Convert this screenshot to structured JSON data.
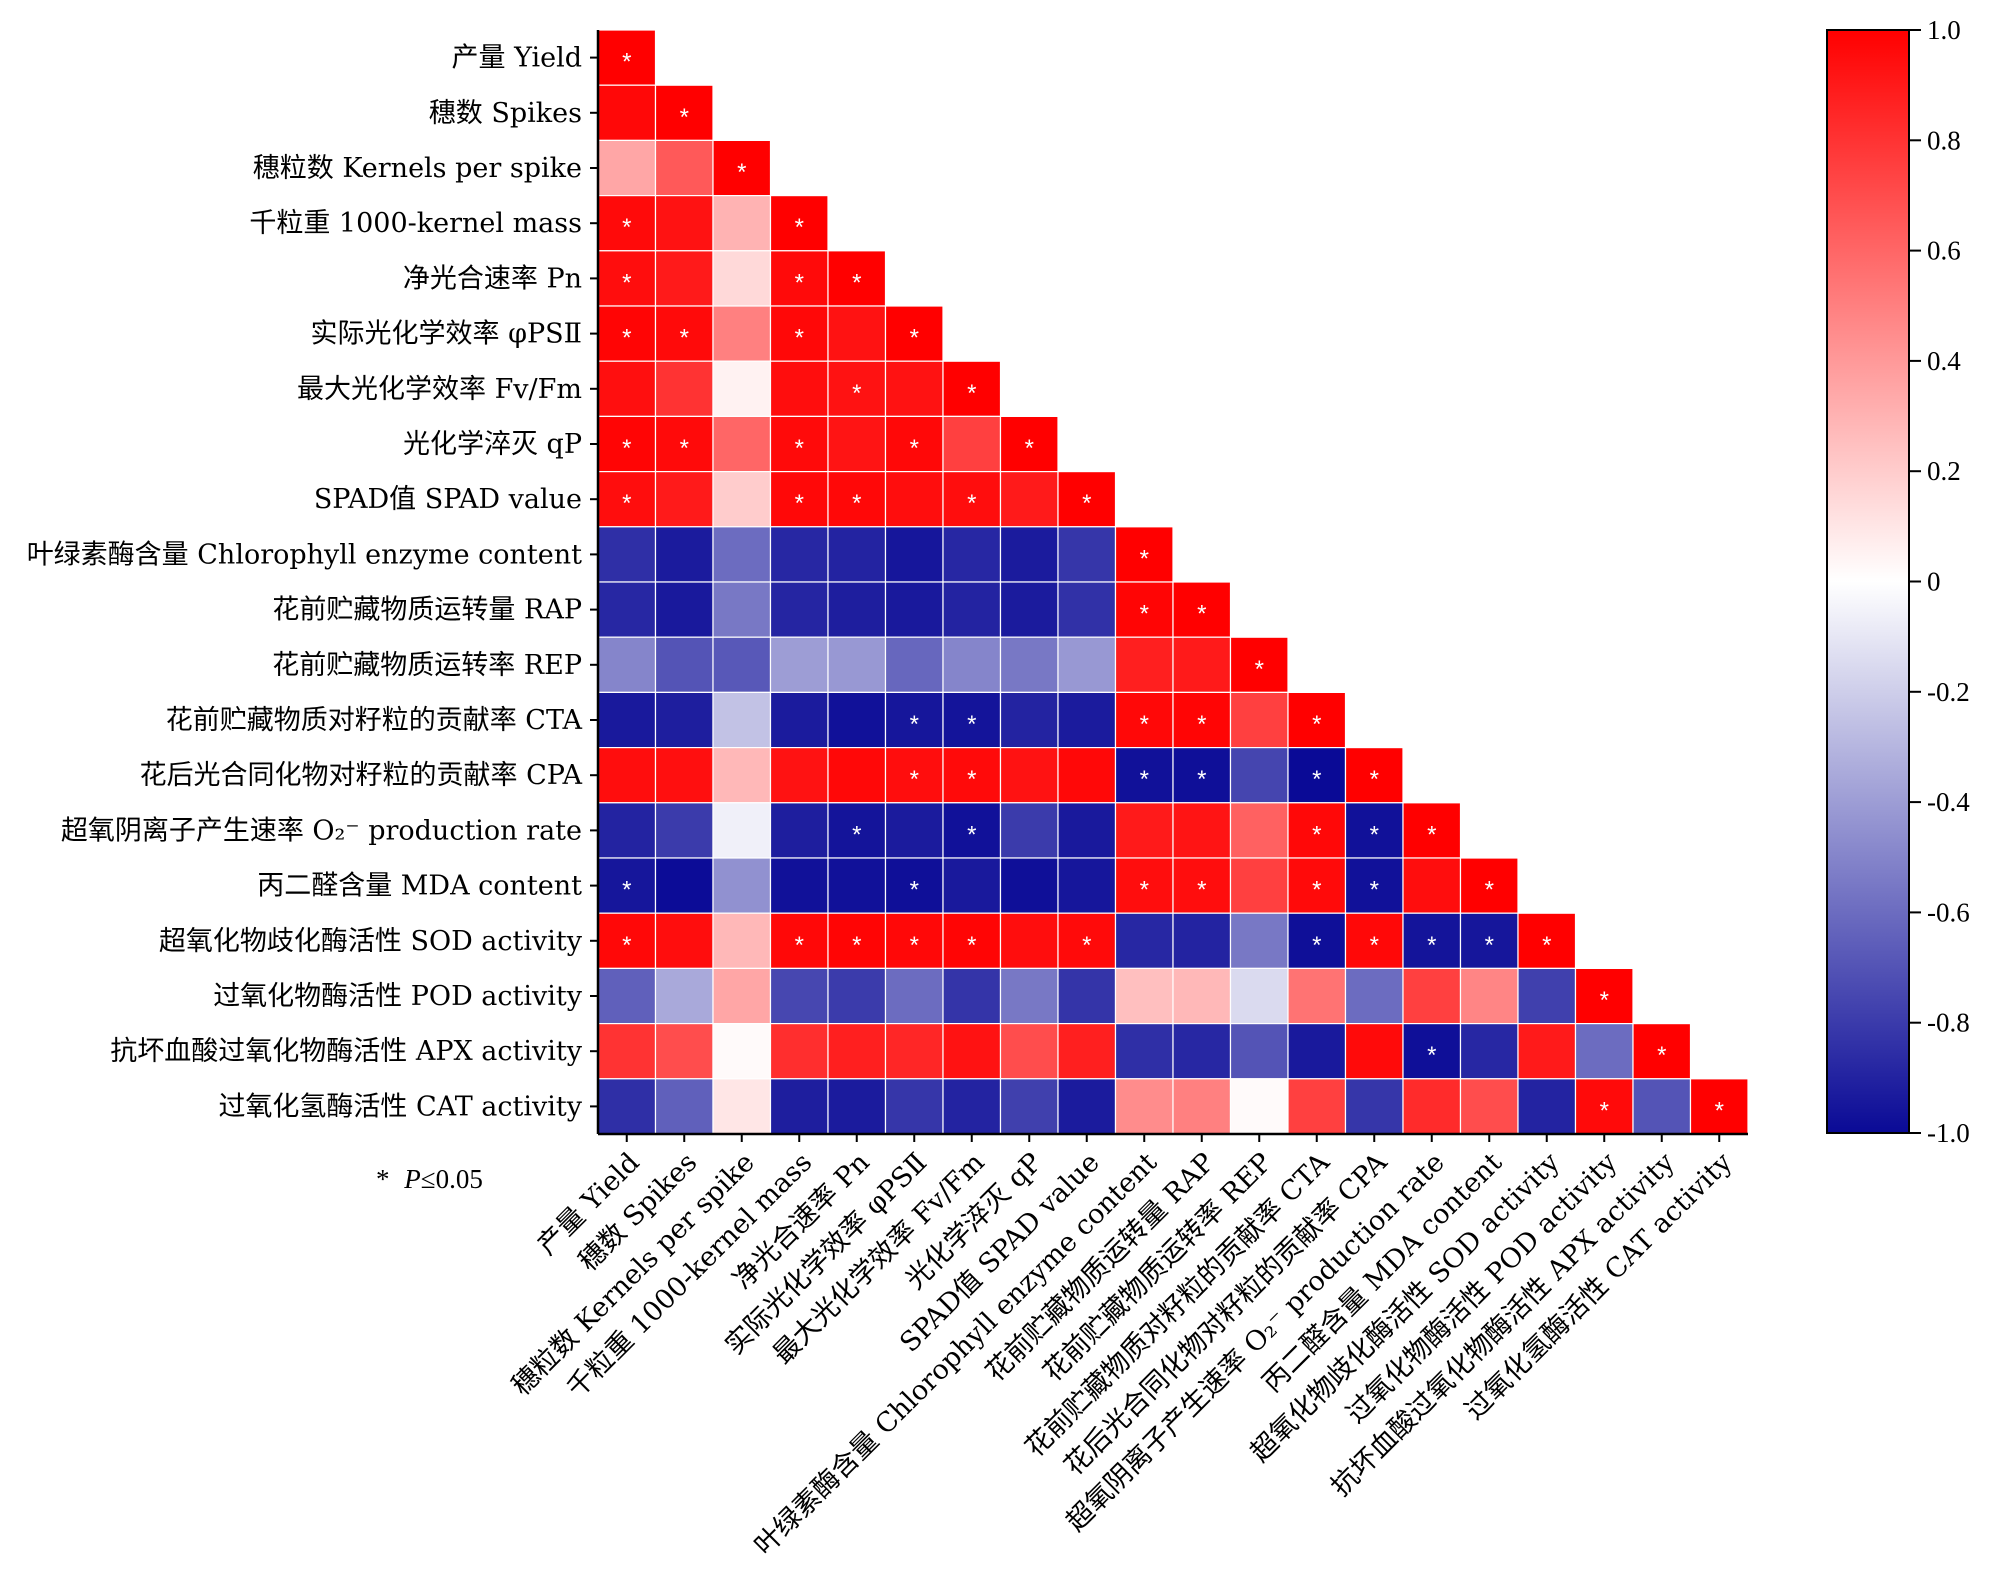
{
  "chart_data": {
    "type": "heatmap",
    "variables": [
      "产量 Yield",
      "穗数 Spikes",
      "穗粒数 Kernels per spike",
      "千粒重 1000-kernel mass",
      "净光合速率 Pn",
      "实际光化学效率 φPSⅡ",
      "最大光化学效率 Fv/Fm",
      "光化学淬灭 qP",
      "SPAD值 SPAD value",
      "叶绿素酶含量 Chlorophyll enzyme content",
      "花前贮藏物质运转量 RAP",
      "花前贮藏物质运转率 REP",
      "花前贮藏物质对籽粒的贡献率 CTA",
      "花后光合同化物对籽粒的贡献率 CPA",
      "超氧阴离子产生速率 O₂⁻ production rate",
      "丙二醛含量 MDA content",
      "超氧化物歧化酶活性 SOD activity",
      "过氧化物酶活性 POD activity",
      "抗坏血酸过氧化物酶活性 APX  activity",
      "过氧化氢酶活性 CAT activity"
    ],
    "matrix": [
      [
        1.0
      ],
      [
        0.97,
        1.0
      ],
      [
        0.35,
        0.65,
        1.0
      ],
      [
        0.96,
        0.93,
        0.3,
        1.0
      ],
      [
        0.95,
        0.9,
        0.15,
        0.96,
        1.0
      ],
      [
        0.98,
        0.96,
        0.5,
        0.97,
        0.93,
        1.0
      ],
      [
        0.94,
        0.8,
        0.05,
        0.95,
        0.93,
        0.93,
        1.0
      ],
      [
        0.98,
        0.96,
        0.6,
        0.96,
        0.92,
        0.97,
        0.75,
        1.0
      ],
      [
        0.95,
        0.9,
        0.2,
        0.97,
        0.97,
        0.95,
        0.95,
        0.9,
        1.0
      ],
      [
        -0.85,
        -0.93,
        -0.6,
        -0.88,
        -0.9,
        -0.95,
        -0.88,
        -0.93,
        -0.82,
        1.0
      ],
      [
        -0.88,
        -0.94,
        -0.55,
        -0.89,
        -0.92,
        -0.94,
        -0.9,
        -0.93,
        -0.84,
        0.98,
        1.0
      ],
      [
        -0.5,
        -0.7,
        -0.68,
        -0.4,
        -0.42,
        -0.62,
        -0.5,
        -0.55,
        -0.42,
        0.88,
        0.9,
        1.0
      ],
      [
        -0.94,
        -0.92,
        -0.25,
        -0.93,
        -0.97,
        -0.95,
        -0.96,
        -0.9,
        -0.93,
        0.97,
        0.98,
        0.75,
        1.0
      ],
      [
        0.95,
        0.94,
        0.28,
        0.93,
        0.97,
        0.95,
        0.96,
        0.93,
        0.97,
        -0.97,
        -0.98,
        -0.76,
        -1.0,
        1.0
      ],
      [
        -0.9,
        -0.8,
        -0.06,
        -0.92,
        -0.96,
        -0.93,
        -0.97,
        -0.8,
        -0.94,
        0.9,
        0.92,
        0.62,
        0.97,
        -0.97,
        1.0
      ],
      [
        -0.95,
        -0.99,
        -0.45,
        -0.97,
        -0.97,
        -0.98,
        -0.94,
        -0.98,
        -0.95,
        0.95,
        0.95,
        0.75,
        0.96,
        -0.97,
        0.95,
        1.0
      ],
      [
        0.97,
        0.95,
        0.28,
        0.97,
        0.98,
        0.97,
        0.98,
        0.95,
        0.96,
        -0.88,
        -0.9,
        -0.55,
        -0.98,
        0.97,
        -0.96,
        -0.95,
        1.0
      ],
      [
        -0.65,
        -0.35,
        0.35,
        -0.75,
        -0.8,
        -0.6,
        -0.83,
        -0.55,
        -0.83,
        0.25,
        0.28,
        -0.15,
        0.55,
        -0.6,
        0.75,
        0.48,
        -0.78,
        1.0
      ],
      [
        0.8,
        0.7,
        0.02,
        0.82,
        0.88,
        0.85,
        0.93,
        0.7,
        0.88,
        -0.85,
        -0.88,
        -0.7,
        -0.94,
        0.96,
        -0.98,
        -0.88,
        0.9,
        -0.6,
        1.0
      ],
      [
        -0.85,
        -0.65,
        0.1,
        -0.92,
        -0.93,
        -0.82,
        -0.9,
        -0.78,
        -0.93,
        0.45,
        0.5,
        0.02,
        0.75,
        -0.82,
        0.83,
        0.7,
        -0.9,
        0.96,
        -0.7,
        1.0
      ]
    ],
    "significant": [
      [
        true
      ],
      [
        false,
        true
      ],
      [
        false,
        false,
        true
      ],
      [
        true,
        false,
        false,
        true
      ],
      [
        true,
        false,
        false,
        true,
        true
      ],
      [
        true,
        true,
        false,
        true,
        false,
        true
      ],
      [
        false,
        false,
        false,
        false,
        true,
        false,
        true
      ],
      [
        true,
        true,
        false,
        true,
        false,
        true,
        false,
        true
      ],
      [
        true,
        false,
        false,
        true,
        true,
        false,
        true,
        false,
        true
      ],
      [
        false,
        false,
        false,
        false,
        false,
        false,
        false,
        false,
        false,
        true
      ],
      [
        false,
        false,
        false,
        false,
        false,
        false,
        false,
        false,
        false,
        true,
        true
      ],
      [
        false,
        false,
        false,
        false,
        false,
        false,
        false,
        false,
        false,
        false,
        false,
        true
      ],
      [
        false,
        false,
        false,
        false,
        false,
        true,
        true,
        false,
        false,
        true,
        true,
        false,
        true
      ],
      [
        false,
        false,
        false,
        false,
        false,
        true,
        true,
        false,
        false,
        true,
        true,
        false,
        true,
        true
      ],
      [
        false,
        false,
        false,
        false,
        true,
        false,
        true,
        false,
        false,
        false,
        false,
        false,
        true,
        true,
        true
      ],
      [
        true,
        false,
        false,
        false,
        false,
        true,
        false,
        false,
        false,
        true,
        true,
        false,
        true,
        true,
        false,
        true
      ],
      [
        true,
        false,
        false,
        true,
        true,
        true,
        true,
        false,
        true,
        false,
        false,
        false,
        true,
        true,
        true,
        true,
        true
      ],
      [
        false,
        false,
        false,
        false,
        false,
        false,
        false,
        false,
        false,
        false,
        false,
        false,
        false,
        false,
        false,
        false,
        false,
        true
      ],
      [
        false,
        false,
        false,
        false,
        false,
        false,
        false,
        false,
        false,
        false,
        false,
        false,
        false,
        false,
        true,
        false,
        false,
        false,
        true
      ],
      [
        false,
        false,
        false,
        false,
        false,
        false,
        false,
        false,
        false,
        false,
        false,
        false,
        false,
        false,
        false,
        false,
        false,
        true,
        false,
        true
      ]
    ],
    "colorbar": {
      "min": -1.0,
      "max": 1.0,
      "ticks": [
        "1.0",
        "0.8",
        "0.6",
        "0.4",
        "0.2",
        "0",
        "-0.2",
        "-0.4",
        "-0.6",
        "-0.8",
        "-1.0"
      ],
      "colors": {
        "low": "#0a0a96",
        "mid": "#ffffff",
        "high": "#ff0000"
      }
    },
    "star_symbol": "*",
    "note_star": "*",
    "note_p": "P",
    "note_rest": "≤0.05"
  }
}
